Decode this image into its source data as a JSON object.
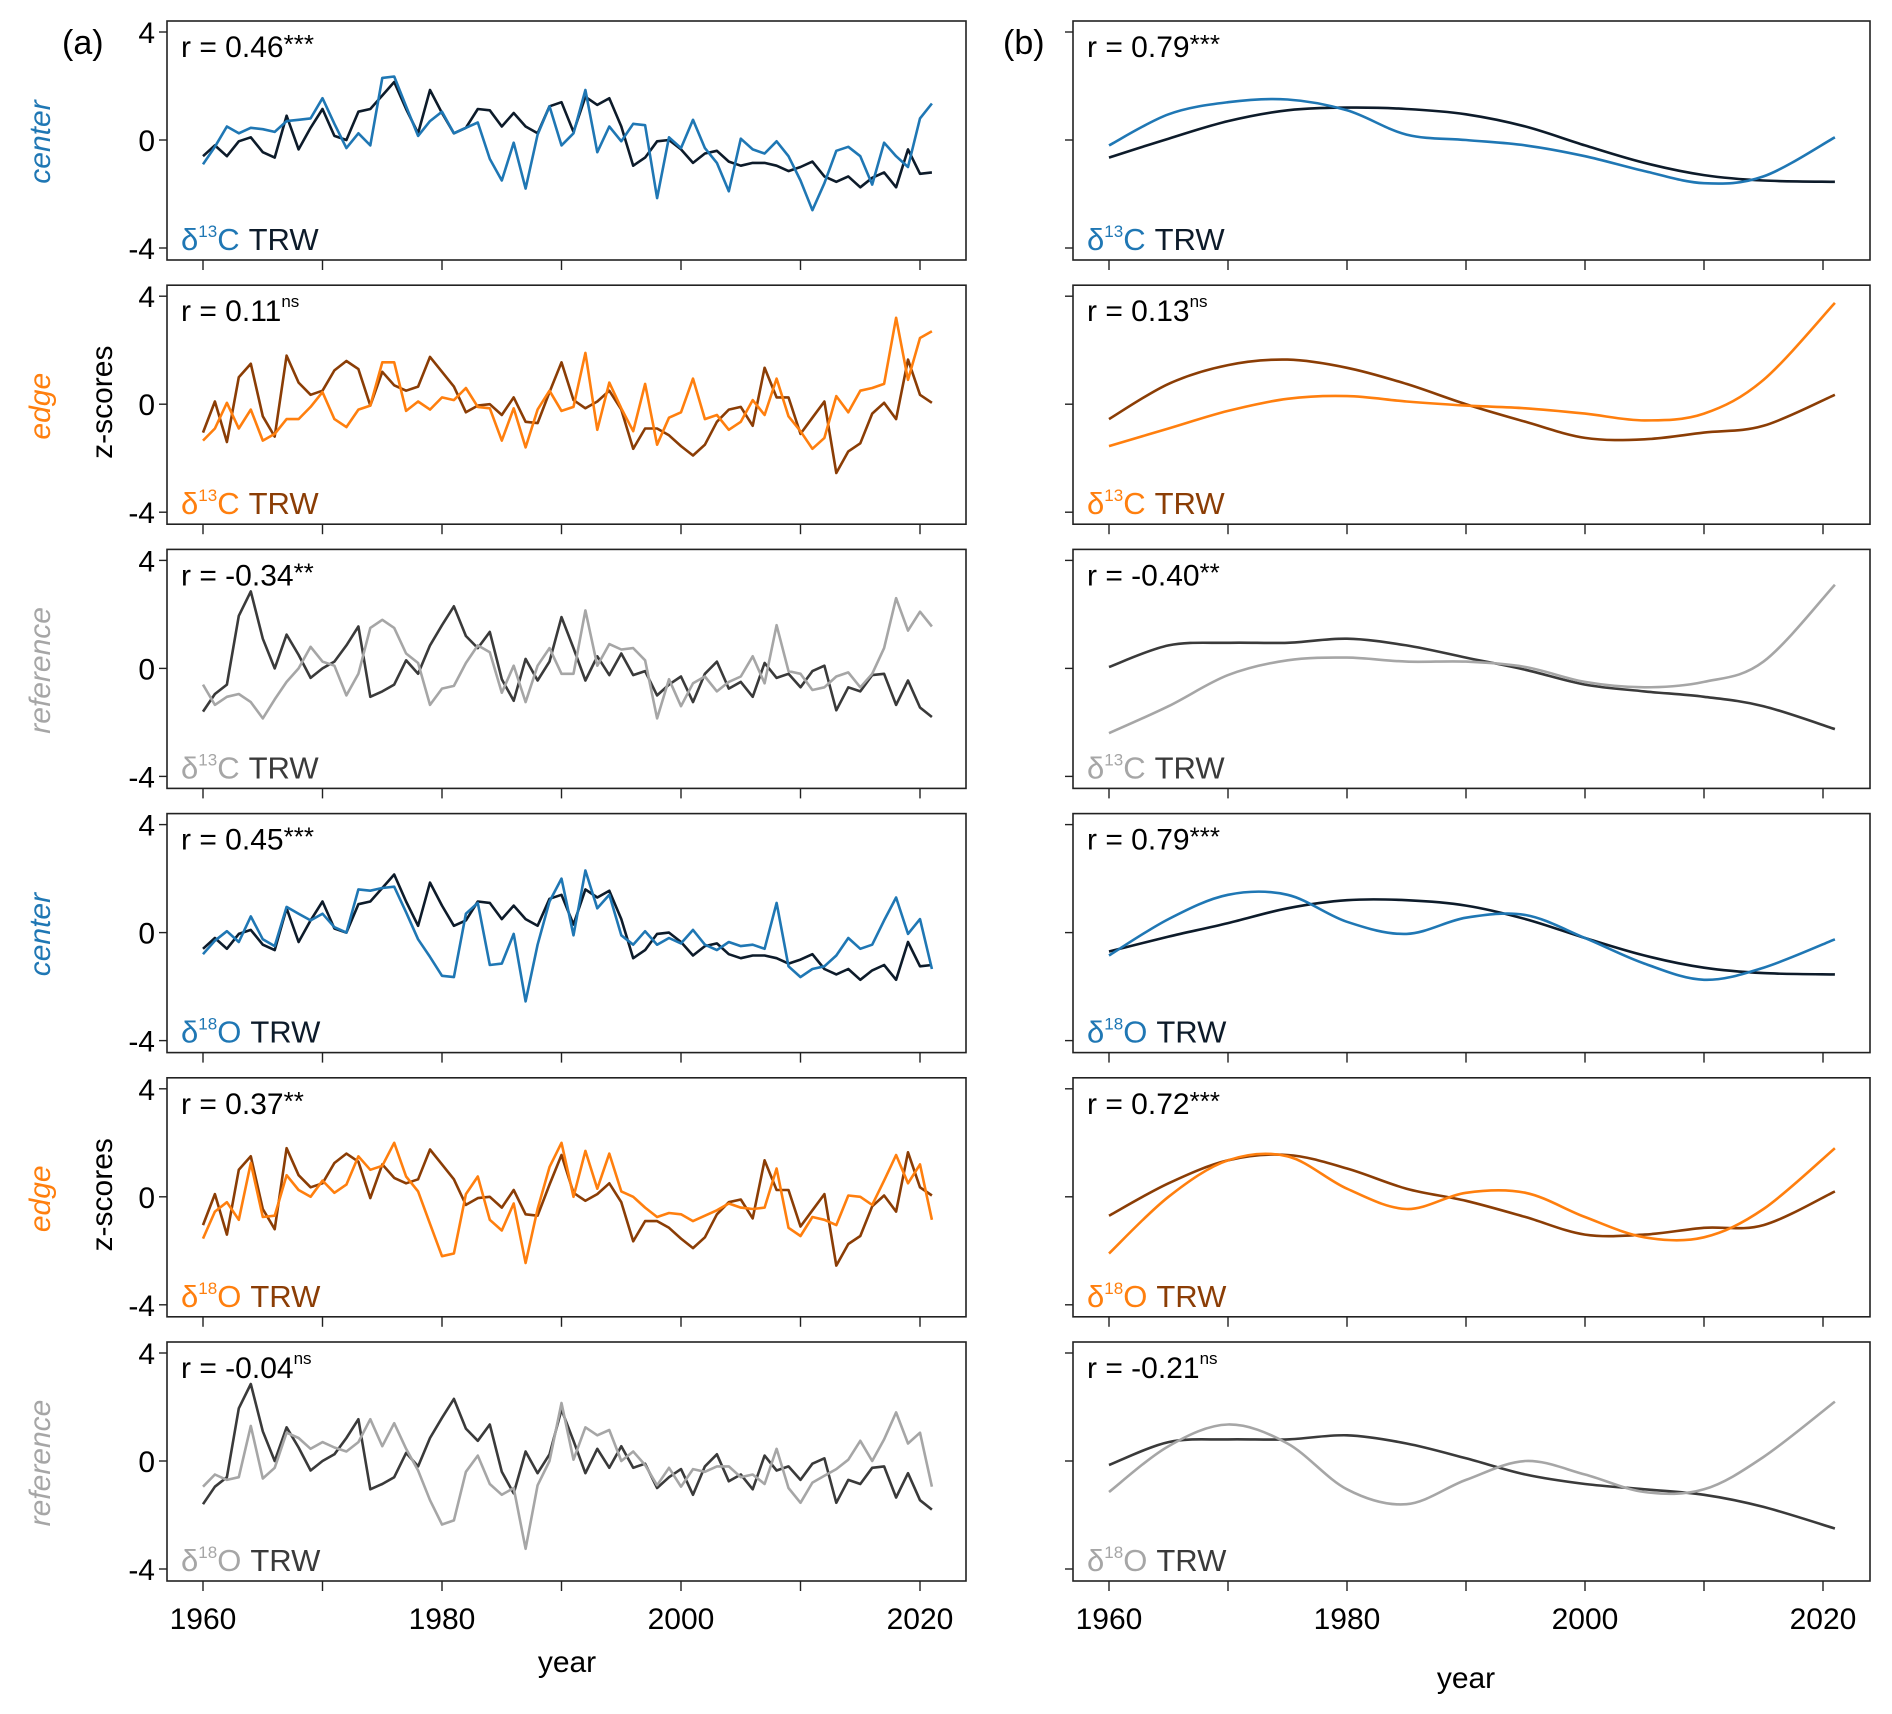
{
  "chart_data": {
    "type": "line",
    "panel_labels": [
      "(a)",
      "(b)"
    ],
    "xlabel": "year",
    "ylabel": "z-scores",
    "x_ticks": [
      1960,
      1980,
      2000,
      2020
    ],
    "x_minor_ticks": [
      1970,
      1990,
      2010
    ],
    "y_ticks": [
      4,
      0,
      -4
    ],
    "ylim": [
      -4.4,
      4.4
    ],
    "xlim": [
      1957,
      2024
    ],
    "years_start": 1960,
    "years_end": 2021,
    "colors": {
      "center": "#1f77b4",
      "center_trw": "#0d1b2a",
      "edge": "#ff7f0e",
      "edge_trw": "#8b3d05",
      "reference": "#a6a6a6",
      "reference_trw": "#3a3a3a",
      "axis": "#000000"
    },
    "rows": [
      {
        "site": "center",
        "isotope": "δ",
        "mass": "13",
        "element": "C",
        "trw_label": "TRW",
        "r_annual": "r = 0.46",
        "sig_annual": "***",
        "r_smooth": "r = 0.79",
        "sig_smooth": "***",
        "ylabel_visible": false,
        "iso_key": "c13_center",
        "trw_key": "trw_center"
      },
      {
        "site": "edge",
        "isotope": "δ",
        "mass": "13",
        "element": "C",
        "trw_label": "TRW",
        "r_annual": "r = 0.11",
        "sig_annual": "ns",
        "r_smooth": "r = 0.13",
        "sig_smooth": "ns",
        "ylabel_visible": true,
        "iso_key": "c13_edge",
        "trw_key": "trw_edge"
      },
      {
        "site": "reference",
        "isotope": "δ",
        "mass": "13",
        "element": "C",
        "trw_label": "TRW",
        "r_annual": "r = -0.34",
        "sig_annual": "**",
        "r_smooth": "r = -0.40",
        "sig_smooth": "**",
        "ylabel_visible": false,
        "iso_key": "c13_reference",
        "trw_key": "trw_reference"
      },
      {
        "site": "center",
        "isotope": "δ",
        "mass": "18",
        "element": "O",
        "trw_label": "TRW",
        "r_annual": "r = 0.45",
        "sig_annual": "***",
        "r_smooth": "r = 0.79",
        "sig_smooth": "***",
        "ylabel_visible": false,
        "iso_key": "o18_center",
        "trw_key": "trw_center"
      },
      {
        "site": "edge",
        "isotope": "δ",
        "mass": "18",
        "element": "O",
        "trw_label": "TRW",
        "r_annual": "r = 0.37",
        "sig_annual": "**",
        "r_smooth": "r = 0.72",
        "sig_smooth": "***",
        "ylabel_visible": true,
        "iso_key": "o18_edge",
        "trw_key": "trw_edge"
      },
      {
        "site": "reference",
        "isotope": "δ",
        "mass": "18",
        "element": "O",
        "trw_label": "TRW",
        "r_annual": "r = -0.04",
        "sig_annual": "ns",
        "r_smooth": "r = -0.21",
        "sig_smooth": "ns",
        "ylabel_visible": false,
        "iso_key": "o18_reference",
        "trw_key": "trw_reference"
      }
    ],
    "annual_series": {
      "trw_center": [
        -0.6,
        -0.2,
        -0.6,
        -0.05,
        0.1,
        -0.45,
        -0.65,
        0.9,
        -0.35,
        0.45,
        1.15,
        0.15,
        0.0,
        1.05,
        1.15,
        1.65,
        2.15,
        1.15,
        0.25,
        1.85,
        1.0,
        0.25,
        0.45,
        1.15,
        1.1,
        0.5,
        1.0,
        0.5,
        0.25,
        1.25,
        1.4,
        0.3,
        1.6,
        1.3,
        1.55,
        0.5,
        -0.95,
        -0.65,
        -0.05,
        0.0,
        -0.35,
        -0.85,
        -0.5,
        -0.4,
        -0.8,
        -0.95,
        -0.85,
        -0.85,
        -0.95,
        -1.15,
        -1.0,
        -0.8,
        -1.35,
        -1.55,
        -1.35,
        -1.75,
        -1.4,
        -1.2,
        -1.75,
        -0.35,
        -1.25,
        -1.2
      ],
      "c13_center": [
        -0.9,
        -0.25,
        0.5,
        0.25,
        0.45,
        0.4,
        0.3,
        0.7,
        0.75,
        0.8,
        1.55,
        0.6,
        -0.3,
        0.25,
        -0.2,
        2.3,
        2.35,
        1.25,
        0.15,
        0.7,
        1.05,
        0.25,
        0.45,
        0.65,
        -0.7,
        -1.5,
        -0.1,
        -1.8,
        0.2,
        1.25,
        -0.2,
        0.25,
        1.85,
        -0.45,
        0.5,
        -0.05,
        0.6,
        0.55,
        -2.15,
        0.1,
        -0.3,
        0.75,
        -0.3,
        -0.85,
        -1.9,
        0.05,
        -0.35,
        -0.5,
        -0.05,
        -0.6,
        -1.5,
        -2.6,
        -1.6,
        -0.4,
        -0.25,
        -0.6,
        -1.65,
        -0.1,
        -0.6,
        -1.0,
        0.8,
        1.35
      ],
      "trw_edge": [
        -1.05,
        0.1,
        -1.4,
        1.0,
        1.5,
        -0.45,
        -1.2,
        1.8,
        0.8,
        0.35,
        0.5,
        1.25,
        1.6,
        1.3,
        -0.05,
        1.2,
        0.7,
        0.5,
        0.65,
        1.75,
        1.2,
        0.65,
        -0.3,
        -0.05,
        0.0,
        -0.4,
        0.25,
        -0.65,
        -0.7,
        0.45,
        1.55,
        0.15,
        -0.15,
        0.1,
        0.5,
        -0.2,
        -1.65,
        -0.9,
        -0.9,
        -1.15,
        -1.55,
        -1.9,
        -1.5,
        -0.65,
        -0.2,
        -0.1,
        -0.8,
        1.35,
        0.25,
        0.25,
        -1.1,
        -0.5,
        0.1,
        -2.55,
        -1.75,
        -1.45,
        -0.35,
        0.05,
        -0.55,
        1.65,
        0.35,
        0.05
      ],
      "c13_edge": [
        -1.35,
        -0.9,
        0.05,
        -0.9,
        -0.2,
        -1.35,
        -1.1,
        -0.55,
        -0.55,
        -0.1,
        0.45,
        -0.55,
        -0.85,
        -0.2,
        -0.05,
        1.55,
        1.55,
        -0.25,
        0.1,
        -0.2,
        0.25,
        0.15,
        0.6,
        -0.1,
        -0.15,
        -1.35,
        -0.15,
        -1.6,
        -0.2,
        0.5,
        -0.25,
        -0.1,
        1.9,
        -0.95,
        0.8,
        -0.15,
        -1.0,
        0.75,
        -1.5,
        -0.5,
        -0.3,
        0.95,
        -0.55,
        -0.4,
        -0.95,
        -0.65,
        0.15,
        -0.4,
        0.95,
        -0.45,
        -1.0,
        -1.65,
        -1.25,
        0.3,
        -0.3,
        0.5,
        0.6,
        0.75,
        3.2,
        0.9,
        2.45,
        2.7
      ],
      "trw_reference": [
        -1.6,
        -0.95,
        -0.6,
        1.95,
        2.85,
        1.1,
        0.0,
        1.25,
        0.5,
        -0.35,
        0.0,
        0.25,
        0.85,
        1.55,
        -1.05,
        -0.85,
        -0.6,
        0.3,
        -0.2,
        0.85,
        1.6,
        2.3,
        1.2,
        0.75,
        1.35,
        -0.4,
        -1.2,
        0.35,
        -0.45,
        0.25,
        1.9,
        0.75,
        -0.45,
        0.45,
        -0.25,
        0.55,
        -0.25,
        -0.1,
        -1.0,
        -0.6,
        -0.3,
        -1.25,
        -0.2,
        0.25,
        -0.75,
        -0.5,
        -1.05,
        0.2,
        -0.35,
        -0.2,
        -0.7,
        -0.1,
        0.1,
        -1.55,
        -0.7,
        -0.85,
        -0.25,
        -0.2,
        -1.35,
        -0.45,
        -1.45,
        -1.8
      ],
      "c13_reference": [
        -0.6,
        -1.35,
        -1.05,
        -0.95,
        -1.25,
        -1.85,
        -1.15,
        -0.5,
        0.0,
        0.8,
        0.25,
        0.1,
        -1.0,
        -0.2,
        1.5,
        1.8,
        1.5,
        0.55,
        0.2,
        -1.35,
        -0.75,
        -0.65,
        0.2,
        0.85,
        0.6,
        -0.9,
        0.1,
        -1.25,
        0.1,
        0.75,
        -0.2,
        -0.2,
        2.15,
        0.1,
        0.9,
        0.7,
        0.75,
        0.3,
        -1.85,
        -0.4,
        -1.4,
        -0.55,
        -0.3,
        -0.85,
        -0.5,
        -0.3,
        0.45,
        -0.55,
        1.6,
        -0.1,
        -0.2,
        -0.8,
        -0.7,
        -0.3,
        -0.15,
        -0.7,
        -0.2,
        0.75,
        2.6,
        1.4,
        2.1,
        1.55
      ],
      "o18_center": [
        -0.8,
        -0.3,
        0.05,
        -0.35,
        0.6,
        -0.25,
        -0.5,
        0.95,
        0.7,
        0.45,
        0.7,
        0.2,
        0.0,
        1.6,
        1.55,
        1.65,
        1.7,
        0.75,
        -0.25,
        -0.9,
        -1.6,
        -1.65,
        0.7,
        1.1,
        -1.2,
        -1.15,
        -0.05,
        -2.55,
        -0.45,
        1.15,
        2.0,
        -0.1,
        2.3,
        0.9,
        1.4,
        -0.1,
        -0.45,
        0.05,
        -0.45,
        -0.2,
        -0.4,
        0.1,
        -0.45,
        -0.65,
        -0.35,
        -0.5,
        -0.45,
        -0.6,
        1.1,
        -1.25,
        -1.65,
        -1.35,
        -1.25,
        -0.85,
        -0.2,
        -0.6,
        -0.45,
        0.45,
        1.3,
        -0.05,
        0.5,
        -1.35
      ],
      "o18_edge": [
        -1.55,
        -0.55,
        -0.2,
        -0.85,
        1.25,
        -0.75,
        -0.7,
        0.8,
        0.25,
        0.0,
        0.6,
        0.15,
        0.45,
        1.5,
        1.0,
        1.15,
        2.0,
        0.75,
        0.2,
        -1.0,
        -2.2,
        -2.1,
        0.1,
        0.75,
        -0.85,
        -1.25,
        -0.25,
        -2.45,
        -0.45,
        1.1,
        2.0,
        0.0,
        1.7,
        0.3,
        1.6,
        0.2,
        0.0,
        -0.4,
        -0.75,
        -0.6,
        -0.65,
        -0.9,
        -0.7,
        -0.5,
        -0.25,
        -0.4,
        -0.45,
        -0.4,
        1.05,
        -1.15,
        -1.45,
        -0.75,
        -0.85,
        -1.05,
        0.05,
        0.0,
        -0.3,
        0.6,
        1.55,
        0.5,
        1.2,
        -0.85
      ],
      "o18_reference": [
        -0.95,
        -0.5,
        -0.7,
        -0.6,
        1.3,
        -0.65,
        -0.25,
        1.05,
        0.85,
        0.45,
        0.7,
        0.5,
        0.35,
        0.7,
        1.55,
        0.55,
        1.4,
        0.45,
        -0.35,
        -1.45,
        -2.35,
        -2.2,
        -0.4,
        0.2,
        -0.85,
        -1.25,
        -1.0,
        -3.25,
        -0.9,
        0.0,
        2.15,
        0.05,
        1.25,
        0.95,
        1.15,
        0.0,
        0.35,
        -0.15,
        -0.9,
        -0.25,
        -0.95,
        -0.3,
        -0.4,
        -0.2,
        -0.2,
        -0.6,
        -0.5,
        -0.85,
        0.45,
        -1.0,
        -1.55,
        -0.8,
        -0.55,
        -0.3,
        0.05,
        0.75,
        0.0,
        0.8,
        1.8,
        0.65,
        1.05,
        -0.95
      ]
    },
    "smooth_knot_years": [
      1960,
      1965,
      1970,
      1975,
      1980,
      1985,
      1990,
      1995,
      2000,
      2005,
      2010,
      2015,
      2021
    ],
    "smooth_series": {
      "trw_center": [
        -0.65,
        0.05,
        0.7,
        1.1,
        1.2,
        1.15,
        0.95,
        0.5,
        -0.2,
        -0.85,
        -1.3,
        -1.5,
        -1.55
      ],
      "c13_center": [
        -0.2,
        0.95,
        1.4,
        1.5,
        1.1,
        0.2,
        0.0,
        -0.2,
        -0.6,
        -1.15,
        -1.6,
        -1.35,
        0.1
      ],
      "trw_edge": [
        -0.55,
        0.75,
        1.45,
        1.65,
        1.35,
        0.75,
        0.0,
        -0.65,
        -1.25,
        -1.3,
        -1.05,
        -0.8,
        0.35
      ],
      "c13_edge": [
        -1.55,
        -0.9,
        -0.25,
        0.2,
        0.3,
        0.1,
        -0.05,
        -0.15,
        -0.35,
        -0.6,
        -0.35,
        0.9,
        3.75
      ],
      "trw_reference": [
        0.05,
        0.85,
        0.95,
        0.95,
        1.1,
        0.85,
        0.4,
        -0.05,
        -0.6,
        -0.85,
        -1.05,
        -1.4,
        -2.25
      ],
      "c13_reference": [
        -2.4,
        -1.4,
        -0.25,
        0.3,
        0.4,
        0.25,
        0.25,
        0.05,
        -0.5,
        -0.7,
        -0.5,
        0.25,
        3.1
      ],
      "o18_center": [
        -0.85,
        0.5,
        1.4,
        1.4,
        0.4,
        -0.05,
        0.55,
        0.65,
        -0.2,
        -1.15,
        -1.75,
        -1.3,
        -0.25
      ],
      "trw_center_b": [
        -0.7,
        -0.15,
        0.35,
        0.9,
        1.2,
        1.2,
        1.0,
        0.5,
        -0.2,
        -0.85,
        -1.3,
        -1.5,
        -1.55
      ],
      "o18_edge": [
        -2.1,
        0.0,
        1.35,
        1.5,
        0.3,
        -0.45,
        0.15,
        0.15,
        -0.75,
        -1.5,
        -1.5,
        -0.45,
        1.8
      ],
      "trw_edge_b": [
        -0.7,
        0.5,
        1.35,
        1.55,
        1.05,
        0.3,
        -0.15,
        -0.75,
        -1.4,
        -1.4,
        -1.15,
        -1.05,
        0.2
      ],
      "o18_reference": [
        -1.15,
        0.55,
        1.35,
        0.65,
        -1.05,
        -1.6,
        -0.7,
        0.0,
        -0.5,
        -1.15,
        -1.05,
        0.15,
        2.2
      ],
      "trw_reference_b": [
        -0.15,
        0.7,
        0.8,
        0.8,
        0.95,
        0.65,
        0.1,
        -0.5,
        -0.85,
        -1.05,
        -1.25,
        -1.7,
        -2.5
      ]
    },
    "smooth_pairs": [
      {
        "iso": "c13_center",
        "trw": "trw_center"
      },
      {
        "iso": "c13_edge",
        "trw": "trw_edge"
      },
      {
        "iso": "c13_reference",
        "trw": "trw_reference"
      },
      {
        "iso": "o18_center",
        "trw": "trw_center_b"
      },
      {
        "iso": "o18_edge",
        "trw": "trw_edge_b"
      },
      {
        "iso": "o18_reference",
        "trw": "trw_reference_b"
      }
    ]
  }
}
